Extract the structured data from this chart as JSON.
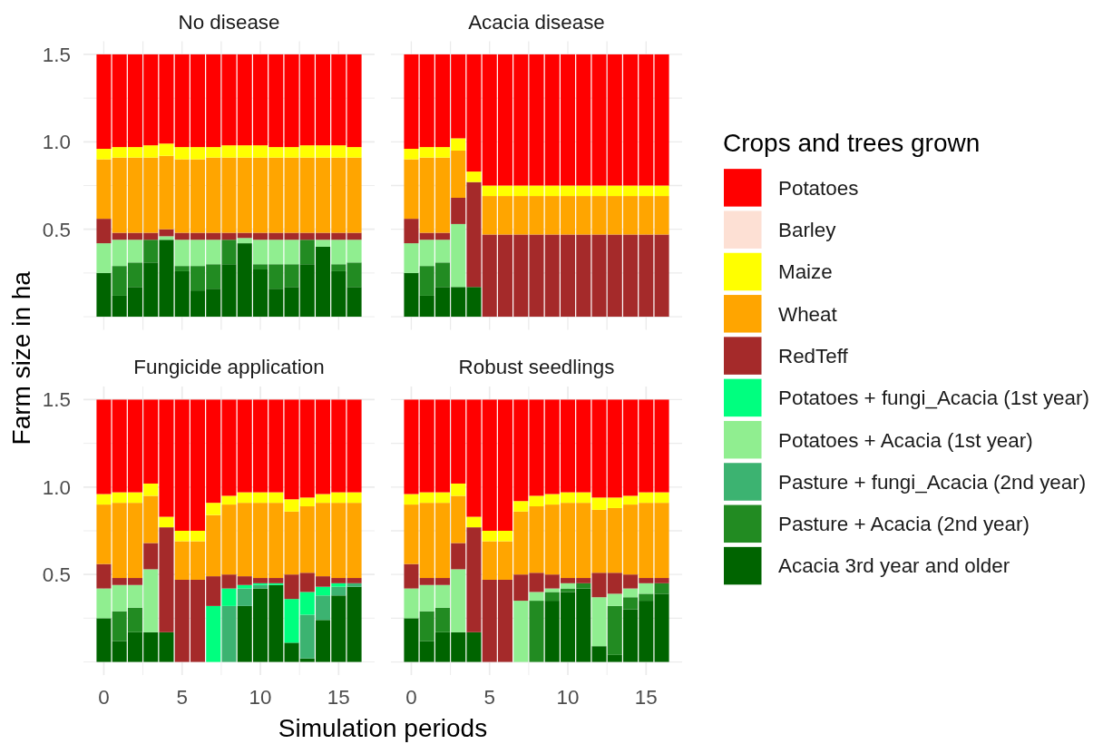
{
  "chart_data": [
    {
      "type": "bar",
      "title": "No disease",
      "ylabel": "Farm size in ha",
      "stacked": true,
      "grid": true,
      "tick_labels": "y",
      "x": [
        0,
        1,
        2,
        3,
        4,
        5,
        6,
        7,
        8,
        9,
        10,
        11,
        12,
        13,
        14,
        15,
        16
      ],
      "xlim": [
        -1.3,
        17.3
      ],
      "xticks": [
        {
          "value": 0,
          "label": null
        },
        {
          "value": 2.5,
          "label": null
        },
        {
          "value": 5,
          "label": null
        },
        {
          "value": 7.5,
          "label": null
        },
        {
          "value": 10,
          "label": null
        },
        {
          "value": 12.5,
          "label": null
        },
        {
          "value": 15,
          "label": null
        }
      ],
      "ylim": [
        -0.075,
        1.575
      ],
      "yticks": [
        {
          "value": 0,
          "label": null
        },
        {
          "value": 0.25,
          "label": null
        },
        {
          "value": 0.5,
          "label": "0.5"
        },
        {
          "value": 0.75,
          "label": null
        },
        {
          "value": 1,
          "label": "1.0"
        },
        {
          "value": 1.25,
          "label": null
        },
        {
          "value": 1.5,
          "label": "1.5"
        }
      ],
      "series": [
        {
          "color": "#006400",
          "values": [
            0.25,
            0.12,
            0.17,
            0.31,
            0.44,
            0.26,
            0.15,
            0.16,
            0.3,
            0.42,
            0.27,
            0.16,
            0.17,
            0.3,
            0.4,
            0.26,
            0.17
          ]
        },
        {
          "color": "#228b22",
          "values": [
            null,
            0.17,
            0.14,
            0.13,
            null,
            0.03,
            0.14,
            0.14,
            0.14,
            null,
            0.03,
            0.14,
            0.13,
            0.14,
            null,
            0.04,
            0.14
          ]
        },
        {
          "color": "#90ee90",
          "values": [
            0.17,
            0.15,
            0.13,
            null,
            0.02,
            0.15,
            0.15,
            0.14,
            null,
            0.03,
            0.14,
            0.14,
            0.14,
            null,
            0.04,
            0.14,
            0.13
          ]
        },
        {
          "color": "#a52a2a",
          "values": [
            0.14,
            0.04,
            0.04,
            0.04,
            0.04,
            0.04,
            0.04,
            0.04,
            0.04,
            0.03,
            0.04,
            0.04,
            0.04,
            0.04,
            0.04,
            0.04,
            0.04
          ]
        },
        {
          "color": "#ffa500",
          "values": [
            0.34,
            0.43,
            0.43,
            0.43,
            0.42,
            0.42,
            0.42,
            0.43,
            0.43,
            0.43,
            0.43,
            0.43,
            0.43,
            0.43,
            0.43,
            0.43,
            0.43
          ]
        },
        {
          "color": "#ffff00",
          "values": [
            0.06,
            0.06,
            0.06,
            0.07,
            0.07,
            0.07,
            0.07,
            0.06,
            0.07,
            0.07,
            0.07,
            0.06,
            0.06,
            0.07,
            0.07,
            0.07,
            0.06
          ]
        },
        {
          "color": "#ff0000",
          "values": [
            0.54,
            0.53,
            0.53,
            0.52,
            0.51,
            0.53,
            0.53,
            0.53,
            0.52,
            0.52,
            0.52,
            0.53,
            0.53,
            0.52,
            0.52,
            0.52,
            0.53
          ]
        }
      ]
    },
    {
      "type": "bar",
      "title": "Acacia disease",
      "stacked": true,
      "grid": true,
      "tick_labels": false,
      "legend": "right",
      "legend_title": "Crops and trees grown",
      "x": [
        0,
        1,
        2,
        3,
        4,
        5,
        6,
        7,
        8,
        9,
        10,
        11,
        12,
        13,
        14,
        15,
        16
      ],
      "xlim": [
        -1.3,
        17.3
      ],
      "xticks": [
        {
          "value": 0,
          "label": null
        },
        {
          "value": 2.5,
          "label": null
        },
        {
          "value": 5,
          "label": null
        },
        {
          "value": 7.5,
          "label": null
        },
        {
          "value": 10,
          "label": null
        },
        {
          "value": 12.5,
          "label": null
        },
        {
          "value": 15,
          "label": null
        }
      ],
      "ylim": [
        -0.075,
        1.575
      ],
      "yticks": [
        {
          "value": 0,
          "label": null
        },
        {
          "value": 0.25,
          "label": null
        },
        {
          "value": 0.5,
          "label": null
        },
        {
          "value": 0.75,
          "label": null
        },
        {
          "value": 1,
          "label": null
        },
        {
          "value": 1.25,
          "label": null
        },
        {
          "value": 1.5,
          "label": null
        }
      ],
      "series": [
        {
          "name": "Acacia 3rd year and older",
          "color": "#006400",
          "values": [
            0.25,
            0.12,
            0.17,
            0.17,
            0.17,
            null,
            null,
            null,
            null,
            null,
            null,
            null,
            null,
            null,
            null,
            null,
            null
          ]
        },
        {
          "name": "Pasture + Acacia (2nd year)",
          "color": "#228b22",
          "values": [
            null,
            0.17,
            0.14,
            null,
            null,
            null,
            null,
            null,
            null,
            null,
            null,
            null,
            null,
            null,
            null,
            null,
            null
          ]
        },
        {
          "name": "Pasture + fungi_Acacia (2nd year)",
          "color": "#3cb371",
          "values": [
            null,
            null,
            null,
            null,
            null,
            null,
            null,
            null,
            null,
            null,
            null,
            null,
            null,
            null,
            null,
            null,
            null
          ]
        },
        {
          "name": "Potatoes + Acacia (1st year)",
          "color": "#90ee90",
          "values": [
            0.17,
            0.15,
            0.13,
            0.36,
            null,
            null,
            null,
            null,
            null,
            null,
            null,
            null,
            null,
            null,
            null,
            null,
            null
          ]
        },
        {
          "name": "Potatoes + fungi_Acacia (1st year)",
          "color": "#00ff7f",
          "values": [
            null,
            null,
            null,
            null,
            null,
            null,
            null,
            null,
            null,
            null,
            null,
            null,
            null,
            null,
            null,
            null,
            null
          ]
        },
        {
          "name": "RedTeff",
          "color": "#a52a2a",
          "values": [
            0.14,
            0.04,
            0.04,
            0.15,
            0.6,
            0.47,
            0.47,
            0.47,
            0.47,
            0.47,
            0.47,
            0.47,
            0.47,
            0.47,
            0.47,
            0.47,
            0.47
          ]
        },
        {
          "name": "Wheat",
          "color": "#ffa500",
          "values": [
            0.34,
            0.43,
            0.43,
            0.27,
            null,
            0.22,
            0.22,
            0.22,
            0.22,
            0.22,
            0.22,
            0.22,
            0.22,
            0.22,
            0.22,
            0.22,
            0.22
          ]
        },
        {
          "name": "Maize",
          "color": "#ffff00",
          "values": [
            0.06,
            0.06,
            0.06,
            0.07,
            0.06,
            0.06,
            0.06,
            0.06,
            0.06,
            0.06,
            0.06,
            0.06,
            0.06,
            0.06,
            0.06,
            0.06,
            0.06
          ]
        },
        {
          "name": "Barley",
          "color": "#fde0d4",
          "values": [
            null,
            null,
            null,
            null,
            null,
            null,
            null,
            null,
            null,
            null,
            null,
            null,
            null,
            null,
            null,
            null,
            null
          ]
        },
        {
          "name": "Potatoes",
          "color": "#ff0000",
          "values": [
            0.54,
            0.53,
            0.53,
            0.48,
            0.67,
            0.75,
            0.75,
            0.75,
            0.75,
            0.75,
            0.75,
            0.75,
            0.75,
            0.75,
            0.75,
            0.75,
            0.75
          ]
        }
      ]
    },
    {
      "type": "bar",
      "title": "Fungicide application",
      "xlabel": "Simulation periods",
      "stacked": true,
      "grid": true,
      "x": [
        0,
        1,
        2,
        3,
        4,
        5,
        6,
        7,
        8,
        9,
        10,
        11,
        12,
        13,
        14,
        15,
        16
      ],
      "xlim": [
        -1.3,
        17.3
      ],
      "xticks": [
        0,
        {
          "value": 2.5,
          "label": null
        },
        5,
        {
          "value": 7.5,
          "label": null
        },
        10,
        {
          "value": 12.5,
          "label": null
        },
        15
      ],
      "ylim": [
        -0.075,
        1.575
      ],
      "yticks": [
        {
          "value": 0,
          "label": null
        },
        {
          "value": 0.25,
          "label": null
        },
        {
          "value": 0.5,
          "label": "0.5"
        },
        {
          "value": 0.75,
          "label": null
        },
        {
          "value": 1,
          "label": "1.0"
        },
        {
          "value": 1.25,
          "label": null
        },
        {
          "value": 1.5,
          "label": "1.5"
        }
      ],
      "series": [
        {
          "color": "#006400",
          "values": [
            0.25,
            0.12,
            0.17,
            0.17,
            0.17,
            null,
            null,
            null,
            null,
            0.32,
            0.42,
            0.44,
            0.11,
            0.02,
            0.24,
            0.38,
            0.43
          ]
        },
        {
          "color": "#228b22",
          "values": [
            null,
            0.17,
            0.14,
            null,
            null,
            null,
            null,
            null,
            null,
            null,
            null,
            null,
            null,
            null,
            null,
            null,
            null
          ]
        },
        {
          "color": "#3cb371",
          "values": [
            null,
            null,
            null,
            null,
            null,
            null,
            null,
            null,
            0.32,
            0.1,
            0.02,
            null,
            null,
            0.25,
            0.14,
            0.05,
            0.02
          ]
        },
        {
          "color": "#90ee90",
          "values": [
            0.17,
            0.15,
            0.13,
            0.36,
            null,
            null,
            null,
            null,
            null,
            null,
            null,
            null,
            null,
            null,
            null,
            null,
            null
          ]
        },
        {
          "color": "#00ff7f",
          "values": [
            null,
            null,
            null,
            null,
            null,
            null,
            null,
            0.32,
            0.1,
            0.02,
            0.01,
            0.01,
            0.25,
            0.13,
            0.05,
            0.02,
            null
          ]
        },
        {
          "color": "#a52a2a",
          "values": [
            0.14,
            0.04,
            0.04,
            0.15,
            0.6,
            0.47,
            0.47,
            0.17,
            0.08,
            0.05,
            0.03,
            0.03,
            0.14,
            0.11,
            0.06,
            0.03,
            0.03
          ]
        },
        {
          "color": "#ffa500",
          "values": [
            0.34,
            0.43,
            0.43,
            0.27,
            null,
            0.22,
            0.22,
            0.35,
            0.4,
            0.42,
            0.43,
            0.43,
            0.36,
            0.38,
            0.42,
            0.43,
            0.43
          ]
        },
        {
          "color": "#ffff00",
          "values": [
            0.06,
            0.06,
            0.06,
            0.07,
            0.06,
            0.06,
            0.06,
            0.07,
            0.05,
            0.06,
            0.06,
            0.06,
            0.07,
            0.05,
            0.05,
            0.06,
            0.06
          ]
        },
        {
          "color": "#ff0000",
          "values": [
            0.54,
            0.53,
            0.53,
            0.48,
            0.67,
            0.75,
            0.75,
            0.59,
            0.55,
            0.53,
            0.53,
            0.53,
            0.57,
            0.56,
            0.54,
            0.53,
            0.53
          ]
        }
      ]
    },
    {
      "type": "bar",
      "title": "Robust seedlings",
      "stacked": true,
      "grid": true,
      "tick_labels": "x",
      "x": [
        0,
        1,
        2,
        3,
        4,
        5,
        6,
        7,
        8,
        9,
        10,
        11,
        12,
        13,
        14,
        15,
        16
      ],
      "xlim": [
        -1.3,
        17.3
      ],
      "xticks": [
        0,
        {
          "value": 2.5,
          "label": null
        },
        5,
        {
          "value": 7.5,
          "label": null
        },
        10,
        {
          "value": 12.5,
          "label": null
        },
        15
      ],
      "ylim": [
        -0.075,
        1.575
      ],
      "yticks": [
        {
          "value": 0,
          "label": null
        },
        {
          "value": 0.25,
          "label": null
        },
        {
          "value": 0.5,
          "label": null
        },
        {
          "value": 0.75,
          "label": null
        },
        {
          "value": 1,
          "label": null
        },
        {
          "value": 1.25,
          "label": null
        },
        {
          "value": 1.5,
          "label": null
        }
      ],
      "series": [
        {
          "color": "#006400",
          "values": [
            0.25,
            0.12,
            0.17,
            0.17,
            0.17,
            null,
            null,
            null,
            null,
            0.35,
            0.4,
            0.42,
            0.09,
            0.04,
            0.3,
            0.35,
            0.39
          ]
        },
        {
          "color": "#228b22",
          "values": [
            null,
            0.17,
            0.14,
            null,
            null,
            null,
            null,
            null,
            0.35,
            0.05,
            0.02,
            0.03,
            null,
            0.28,
            0.07,
            0.04,
            0.06
          ]
        },
        {
          "color": "#90ee90",
          "values": [
            0.17,
            0.15,
            0.13,
            0.36,
            null,
            null,
            null,
            0.35,
            0.05,
            0.02,
            0.03,
            null,
            0.28,
            0.07,
            0.05,
            0.06,
            null
          ]
        },
        {
          "color": "#a52a2a",
          "values": [
            0.14,
            0.04,
            0.04,
            0.15,
            0.6,
            0.47,
            0.47,
            0.15,
            0.11,
            0.08,
            0.03,
            0.03,
            0.14,
            0.12,
            0.08,
            0.03,
            0.03
          ]
        },
        {
          "color": "#ffa500",
          "values": [
            0.34,
            0.43,
            0.43,
            0.27,
            null,
            0.22,
            0.22,
            0.36,
            0.38,
            0.4,
            0.43,
            0.43,
            0.36,
            0.37,
            0.4,
            0.43,
            0.43
          ]
        },
        {
          "color": "#ffff00",
          "values": [
            0.06,
            0.06,
            0.06,
            0.07,
            0.06,
            0.06,
            0.06,
            0.06,
            0.06,
            0.06,
            0.06,
            0.06,
            0.07,
            0.06,
            0.05,
            0.06,
            0.06
          ]
        },
        {
          "color": "#ff0000",
          "values": [
            0.54,
            0.53,
            0.53,
            0.48,
            0.67,
            0.75,
            0.75,
            0.58,
            0.55,
            0.54,
            0.53,
            0.53,
            0.56,
            0.56,
            0.55,
            0.53,
            0.53
          ]
        }
      ]
    }
  ]
}
